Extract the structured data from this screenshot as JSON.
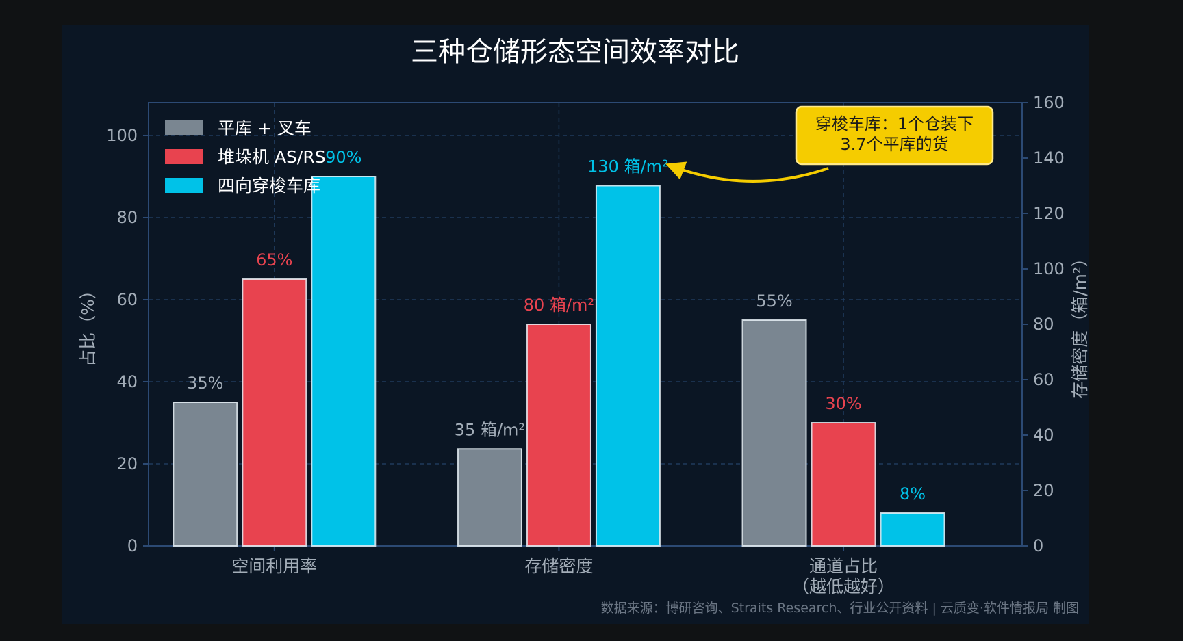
{
  "colors": {
    "page_bg": "#101214",
    "panel_bg": "#0b1624",
    "axis": "#2c4a74",
    "grid": "#1f3a5c",
    "text": "#ffffff",
    "muted": "#a3adb8",
    "gray": "#7a8691",
    "red": "#e8434f",
    "cyan": "#00c2e8",
    "callout_bg": "#f5cc00",
    "callout_border": "#ffe98a",
    "callout_text": "#1a1a1a",
    "source": "#6b7684"
  },
  "chart_data": {
    "type": "bar",
    "title": "三种仓储形态空间效率对比",
    "categories": [
      {
        "lines": [
          "空间利用率"
        ]
      },
      {
        "lines": [
          "存储密度"
        ]
      },
      {
        "lines": [
          "通道占比",
          "（越低越好）"
        ]
      }
    ],
    "ylabel_left": "占比（%）",
    "ylabel_right": "存储密度（箱/m²）",
    "ylim_left": [
      0,
      108
    ],
    "ylim_right": [
      0,
      160
    ],
    "yticks_left": [
      0,
      20,
      40,
      60,
      80,
      100
    ],
    "yticks_right": [
      0,
      20,
      40,
      60,
      80,
      100,
      120,
      140,
      160
    ],
    "grid": true,
    "legend_position": "top-left",
    "series": [
      {
        "name": "平库 + 叉车",
        "color_key": "gray",
        "values": [
          35,
          35,
          55
        ],
        "axis": [
          "left",
          "right",
          "left"
        ],
        "labels": [
          "35%",
          "35 箱/m²",
          "55%"
        ]
      },
      {
        "name": "堆垛机 AS/RS",
        "color_key": "red",
        "values": [
          65,
          80,
          30
        ],
        "axis": [
          "left",
          "right",
          "left"
        ],
        "labels": [
          "65%",
          "80 箱/m²",
          "30%"
        ]
      },
      {
        "name": "四向穿梭车库",
        "color_key": "cyan",
        "values": [
          90,
          130,
          8
        ],
        "axis": [
          "left",
          "right",
          "left"
        ],
        "labels": [
          "90%",
          "130 箱/m²",
          "8%"
        ]
      }
    ],
    "annotation": {
      "lines": [
        "穿梭车库：1个仓装下",
        "3.7个平库的货"
      ],
      "points_to": {
        "series": 2,
        "category": 1
      }
    },
    "source": "数据来源：博研咨询、Straits Research、行业公开资料 | 云质变·软件情报局 制图"
  }
}
